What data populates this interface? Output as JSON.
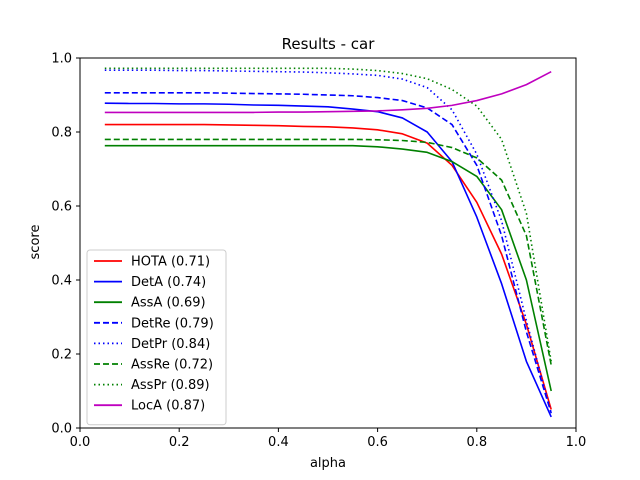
{
  "chart_data": {
    "type": "line",
    "title": "Results - car",
    "xlabel": "alpha",
    "ylabel": "score",
    "xlim": [
      0.0,
      1.0
    ],
    "ylim": [
      0.0,
      1.0
    ],
    "xticks": [
      "0.0",
      "0.2",
      "0.4",
      "0.6",
      "0.8",
      "1.0"
    ],
    "yticks": [
      "0.0",
      "0.2",
      "0.4",
      "0.6",
      "0.8",
      "1.0"
    ],
    "grid": false,
    "legend_position": "lower-left",
    "x": [
      0.05,
      0.1,
      0.15,
      0.2,
      0.25,
      0.3,
      0.35,
      0.4,
      0.45,
      0.5,
      0.55,
      0.6,
      0.65,
      0.7,
      0.75,
      0.8,
      0.85,
      0.9,
      0.95
    ],
    "series": [
      {
        "name": "HOTA (0.71)",
        "color": "#ff0000",
        "dash": "solid",
        "values": [
          0.82,
          0.82,
          0.82,
          0.82,
          0.82,
          0.819,
          0.818,
          0.817,
          0.815,
          0.814,
          0.811,
          0.806,
          0.795,
          0.77,
          0.71,
          0.61,
          0.47,
          0.28,
          0.05
        ]
      },
      {
        "name": "DetA (0.74)",
        "color": "#0000ff",
        "dash": "solid",
        "values": [
          0.878,
          0.877,
          0.877,
          0.876,
          0.876,
          0.875,
          0.873,
          0.872,
          0.87,
          0.868,
          0.862,
          0.855,
          0.838,
          0.8,
          0.72,
          0.57,
          0.39,
          0.18,
          0.03
        ]
      },
      {
        "name": "AssA (0.69)",
        "color": "#008000",
        "dash": "solid",
        "values": [
          0.763,
          0.763,
          0.763,
          0.763,
          0.763,
          0.763,
          0.763,
          0.763,
          0.763,
          0.763,
          0.763,
          0.76,
          0.754,
          0.745,
          0.72,
          0.68,
          0.59,
          0.4,
          0.1
        ]
      },
      {
        "name": "DetRe (0.79)",
        "color": "#0000ff",
        "dash": "dashed",
        "values": [
          0.906,
          0.906,
          0.906,
          0.906,
          0.906,
          0.905,
          0.904,
          0.903,
          0.902,
          0.9,
          0.898,
          0.893,
          0.885,
          0.865,
          0.82,
          0.71,
          0.52,
          0.26,
          0.04
        ]
      },
      {
        "name": "DetPr (0.84)",
        "color": "#0000ff",
        "dash": "dotted",
        "values": [
          0.967,
          0.967,
          0.967,
          0.966,
          0.966,
          0.965,
          0.964,
          0.963,
          0.962,
          0.96,
          0.957,
          0.953,
          0.943,
          0.92,
          0.86,
          0.74,
          0.56,
          0.29,
          0.04
        ]
      },
      {
        "name": "AssRe (0.72)",
        "color": "#008000",
        "dash": "dashed",
        "values": [
          0.78,
          0.78,
          0.78,
          0.78,
          0.78,
          0.78,
          0.78,
          0.78,
          0.78,
          0.78,
          0.78,
          0.779,
          0.777,
          0.772,
          0.758,
          0.73,
          0.67,
          0.52,
          0.17
        ]
      },
      {
        "name": "AssPr (0.89)",
        "color": "#008000",
        "dash": "dotted",
        "values": [
          0.972,
          0.972,
          0.972,
          0.972,
          0.972,
          0.972,
          0.972,
          0.972,
          0.972,
          0.972,
          0.97,
          0.966,
          0.958,
          0.944,
          0.915,
          0.87,
          0.78,
          0.58,
          0.18
        ]
      },
      {
        "name": "LocA (0.87)",
        "color": "#bf00bf",
        "dash": "solid",
        "values": [
          0.853,
          0.853,
          0.853,
          0.853,
          0.853,
          0.853,
          0.853,
          0.854,
          0.854,
          0.855,
          0.856,
          0.857,
          0.86,
          0.864,
          0.872,
          0.885,
          0.903,
          0.928,
          0.963
        ]
      }
    ]
  }
}
